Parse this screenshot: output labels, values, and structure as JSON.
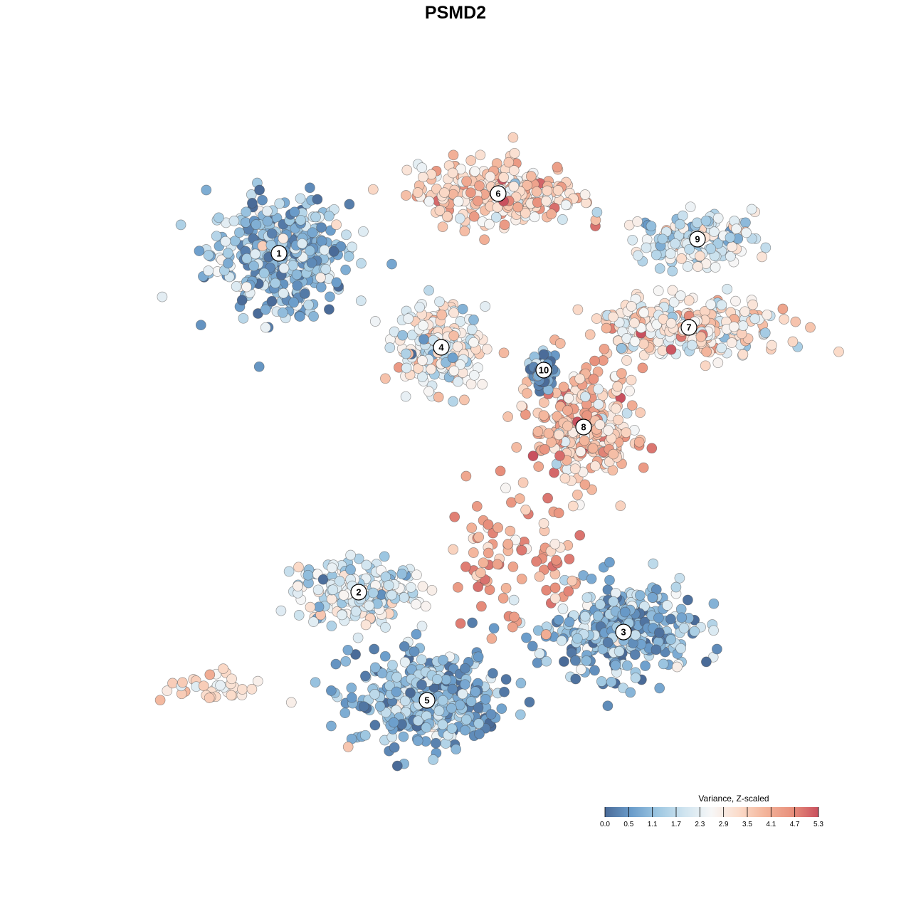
{
  "title": "PSMD2",
  "chart_data": {
    "type": "scatter",
    "title": "PSMD2",
    "xlabel": "",
    "ylabel": "",
    "grid": false,
    "legend": {
      "title": "Variance, Z-scaled",
      "placement": "bottom-right",
      "ticks": [
        "0.0",
        "0.5",
        "1.1",
        "1.7",
        "2.3",
        "2.9",
        "3.5",
        "4.1",
        "4.7",
        "5.3"
      ],
      "range": [
        0.0,
        5.3
      ],
      "colors": [
        "#4a6b98",
        "#6b9dcb",
        "#9fc8e2",
        "#d1e5f0",
        "#f7f7f7",
        "#fbdccb",
        "#f3b49a",
        "#e8907c",
        "#c9505e"
      ]
    },
    "clusters": [
      {
        "id": "1",
        "x": -6.2,
        "y": 7.1,
        "mean_value": 1.2,
        "spread_x": 2.2,
        "spread_y": 1.8
      },
      {
        "id": "2",
        "x": -3.4,
        "y": -4.8,
        "mean_value": 2.0,
        "spread_x": 2.0,
        "spread_y": 1.0
      },
      {
        "id": "3",
        "x": 5.9,
        "y": -6.2,
        "mean_value": 1.0,
        "spread_x": 2.2,
        "spread_y": 1.5
      },
      {
        "id": "4",
        "x": -0.5,
        "y": 3.8,
        "mean_value": 2.5,
        "spread_x": 1.4,
        "spread_y": 1.3
      },
      {
        "id": "5",
        "x": -1.0,
        "y": -8.6,
        "mean_value": 1.0,
        "spread_x": 2.4,
        "spread_y": 1.5
      },
      {
        "id": "6",
        "x": 1.5,
        "y": 9.2,
        "mean_value": 3.4,
        "spread_x": 2.6,
        "spread_y": 1.0
      },
      {
        "id": "7",
        "x": 8.2,
        "y": 4.5,
        "mean_value": 3.0,
        "spread_x": 3.0,
        "spread_y": 0.9
      },
      {
        "id": "8",
        "x": 4.5,
        "y": 1.0,
        "mean_value": 3.6,
        "spread_x": 1.6,
        "spread_y": 1.8
      },
      {
        "id": "9",
        "x": 8.5,
        "y": 7.6,
        "mean_value": 2.1,
        "spread_x": 1.8,
        "spread_y": 0.8
      },
      {
        "id": "10",
        "x": 3.1,
        "y": 3.0,
        "mean_value": 0.6,
        "spread_x": 0.4,
        "spread_y": 0.5
      }
    ],
    "hotspot": {
      "x": 2.0,
      "y": -4.8,
      "value": 5.0,
      "description_label": ""
    },
    "outlier_groups": [
      {
        "x": -8.5,
        "y": -8.2,
        "mean_value": 3.0
      }
    ]
  }
}
